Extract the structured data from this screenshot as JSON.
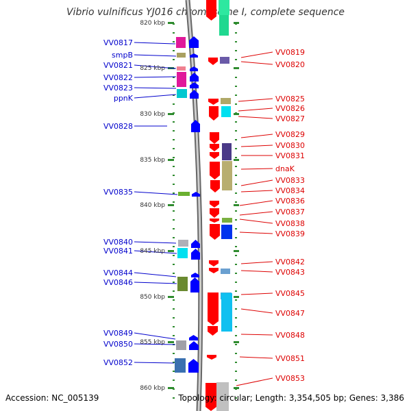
{
  "title": "Vibrio vulnificus YJ016 chromosome I, complete sequence",
  "accession": "Accession: NC_005139",
  "topology": "Topology: circular; Length: 3,354,505 bp; Genes: 3,386",
  "scale_labels": [
    "820 kbp",
    "825 kbp",
    "830 kbp",
    "835 kbp",
    "840 kbp",
    "845 kbp",
    "850 kbp",
    "855 kbp",
    "860 kbp"
  ],
  "left_genes": [
    "VV0817",
    "smpB",
    "VV0821",
    "VV0822",
    "VV0823",
    "ppnK",
    "VV0828",
    "VV0835",
    "VV0840",
    "VV0841",
    "VV0844",
    "VV0846",
    "VV0849",
    "VV0850",
    "VV0852"
  ],
  "right_genes": [
    "VV0819",
    "VV0820",
    "VV0825",
    "VV0826",
    "VV0827",
    "VV0829",
    "VV0830",
    "VV0831",
    "dnaK",
    "VV0833",
    "VV0834",
    "VV0836",
    "VV0837",
    "VV0838",
    "VV0839",
    "VV0842",
    "VV0843",
    "VV0845",
    "VV0847",
    "VV0848",
    "VV0851",
    "VV0853"
  ],
  "colors": {
    "left_label": "#0000cc",
    "right_label": "#dd0000",
    "backbone": "#999999",
    "tick": "#2e8b2e",
    "forward_arrow": "#0000ff",
    "reverse_arrow": "#ff0000"
  }
}
